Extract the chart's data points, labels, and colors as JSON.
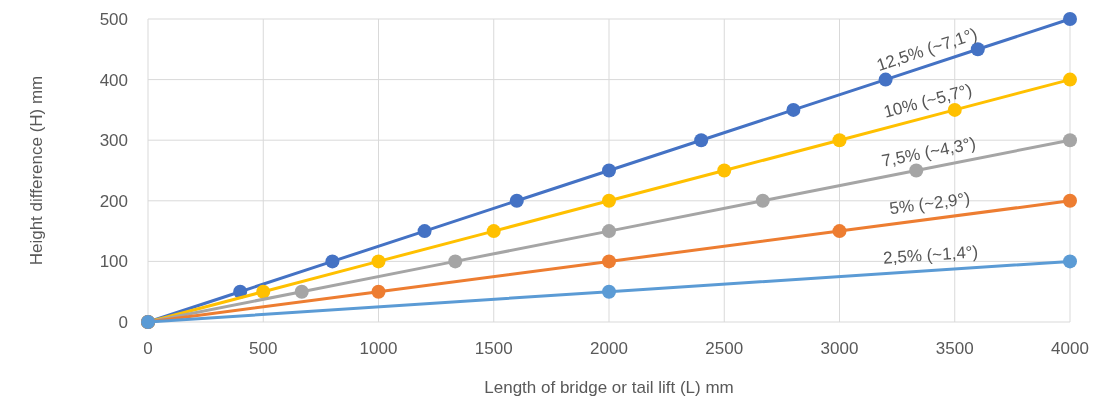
{
  "chart_data": {
    "type": "line",
    "xlabel": "Length of bridge or tail lift (L) mm",
    "ylabel": "Height difference (H) mm",
    "xlim": [
      0,
      4000
    ],
    "xticks": [
      0,
      500,
      1000,
      1500,
      2000,
      2500,
      3000,
      3500,
      4000
    ],
    "ylim": [
      0,
      500
    ],
    "yticks": [
      0,
      100,
      200,
      300,
      400,
      500
    ],
    "grid": true,
    "marker": "circle",
    "line_style": "solid",
    "series": [
      {
        "name": "12,5% (~7,1°)",
        "color": "#4472c4",
        "x": [
          0,
          400,
          800,
          1200,
          1600,
          2000,
          2400,
          2800,
          3200,
          3600,
          4000
        ],
        "values": [
          0,
          50,
          100,
          150,
          200,
          250,
          300,
          350,
          400,
          450,
          500
        ]
      },
      {
        "name": "10% (~5,7°)",
        "color": "#ffc000",
        "x": [
          0,
          500,
          1000,
          1500,
          2000,
          2500,
          3000,
          3500,
          4000
        ],
        "values": [
          0,
          50,
          100,
          150,
          200,
          250,
          300,
          350,
          400
        ]
      },
      {
        "name": "7,5% (~4,3°)",
        "color": "#a5a5a5",
        "x": [
          0,
          667,
          1333,
          2000,
          2667,
          3333,
          4000
        ],
        "values": [
          0,
          50,
          100,
          150,
          200,
          250,
          300
        ]
      },
      {
        "name": "5% (~2,9°)",
        "color": "#ed7d31",
        "x": [
          0,
          1000,
          2000,
          3000,
          4000
        ],
        "values": [
          0,
          50,
          100,
          150,
          200
        ]
      },
      {
        "name": "2,5% (~1,4°)",
        "color": "#5b9bd5",
        "x": [
          0,
          2000,
          4000
        ],
        "values": [
          0,
          50,
          100
        ]
      }
    ]
  }
}
